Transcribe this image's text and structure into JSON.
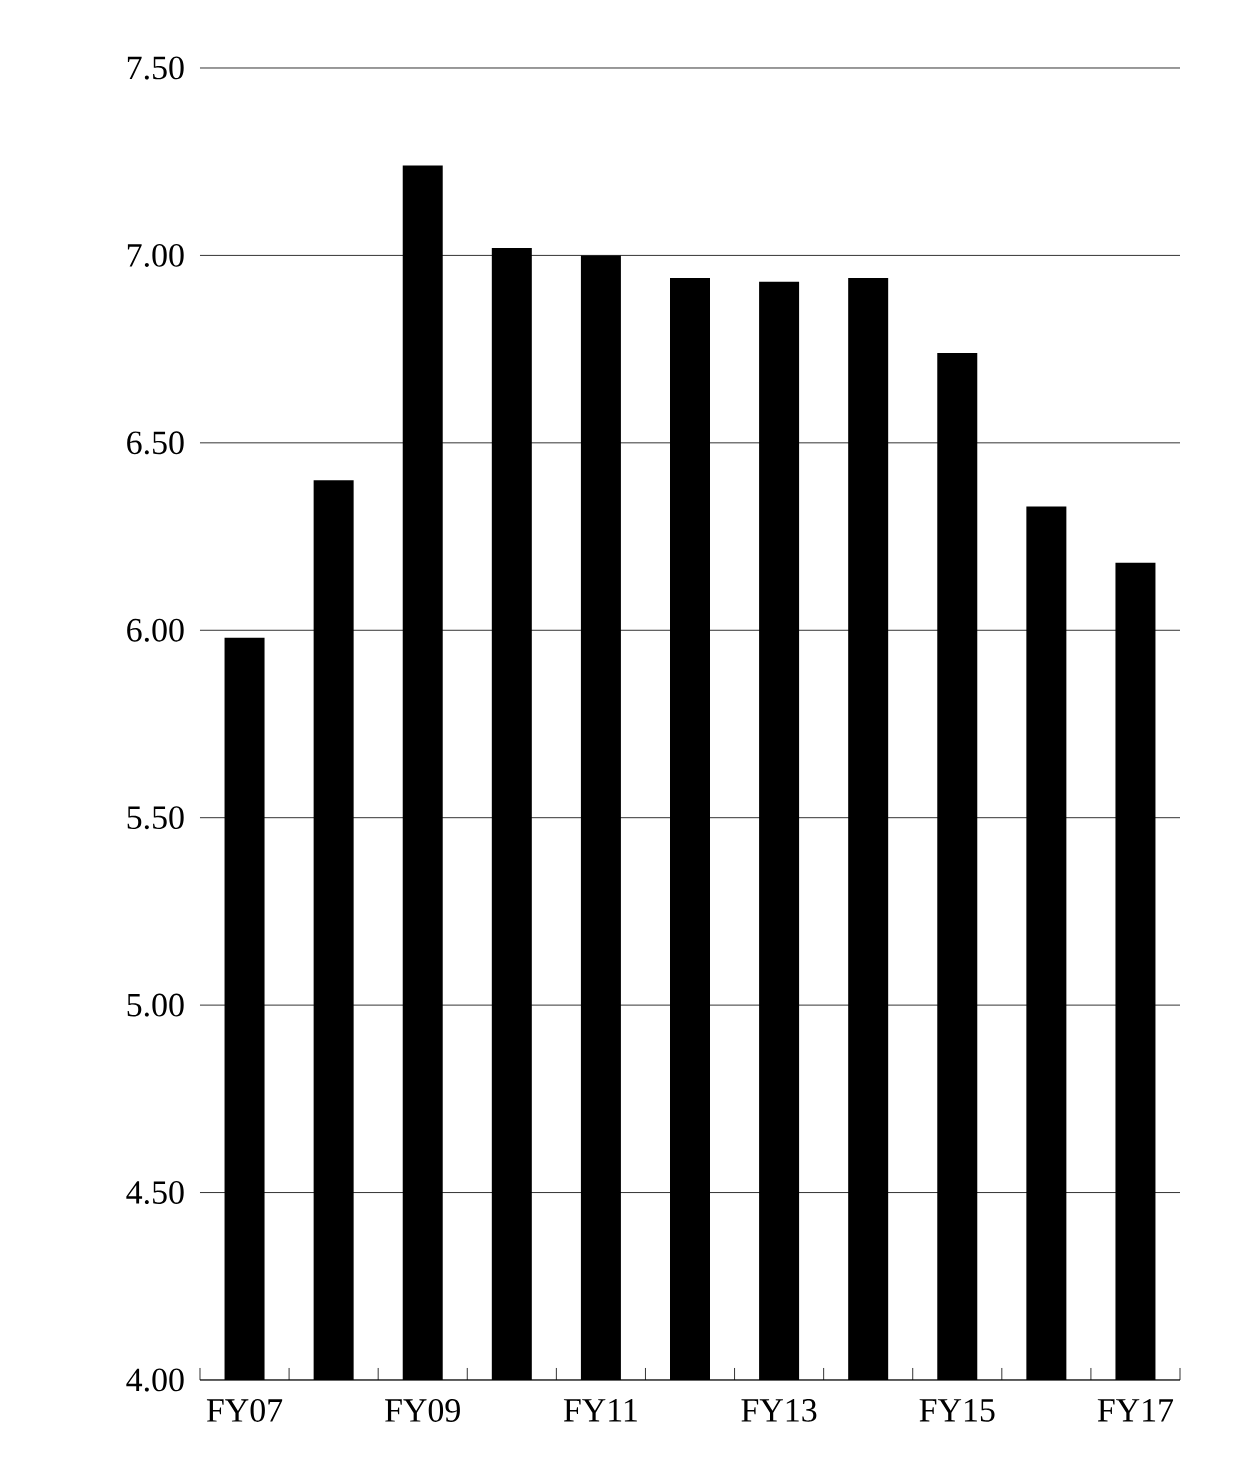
{
  "chart_data": {
    "type": "bar",
    "categories": [
      "FY07",
      null,
      "FY09",
      null,
      "FY11",
      null,
      "FY13",
      null,
      "FY15",
      null,
      "FY17"
    ],
    "values": [
      5.98,
      6.4,
      7.24,
      7.02,
      7.0,
      6.94,
      6.93,
      6.94,
      6.74,
      6.33,
      6.18
    ],
    "color": "#000000",
    "ylim": [
      4.0,
      7.5
    ],
    "yticks": [
      {
        "value": 4.0,
        "label": "4.00"
      },
      {
        "value": 4.5,
        "label": "4.50"
      },
      {
        "value": 5.0,
        "label": "5.00"
      },
      {
        "value": 5.5,
        "label": "5.50"
      },
      {
        "value": 6.0,
        "label": "6.00"
      },
      {
        "value": 6.5,
        "label": "6.50"
      },
      {
        "value": 7.0,
        "label": "7.00"
      },
      {
        "value": 7.5,
        "label": "7.50"
      }
    ],
    "grid": "y"
  }
}
